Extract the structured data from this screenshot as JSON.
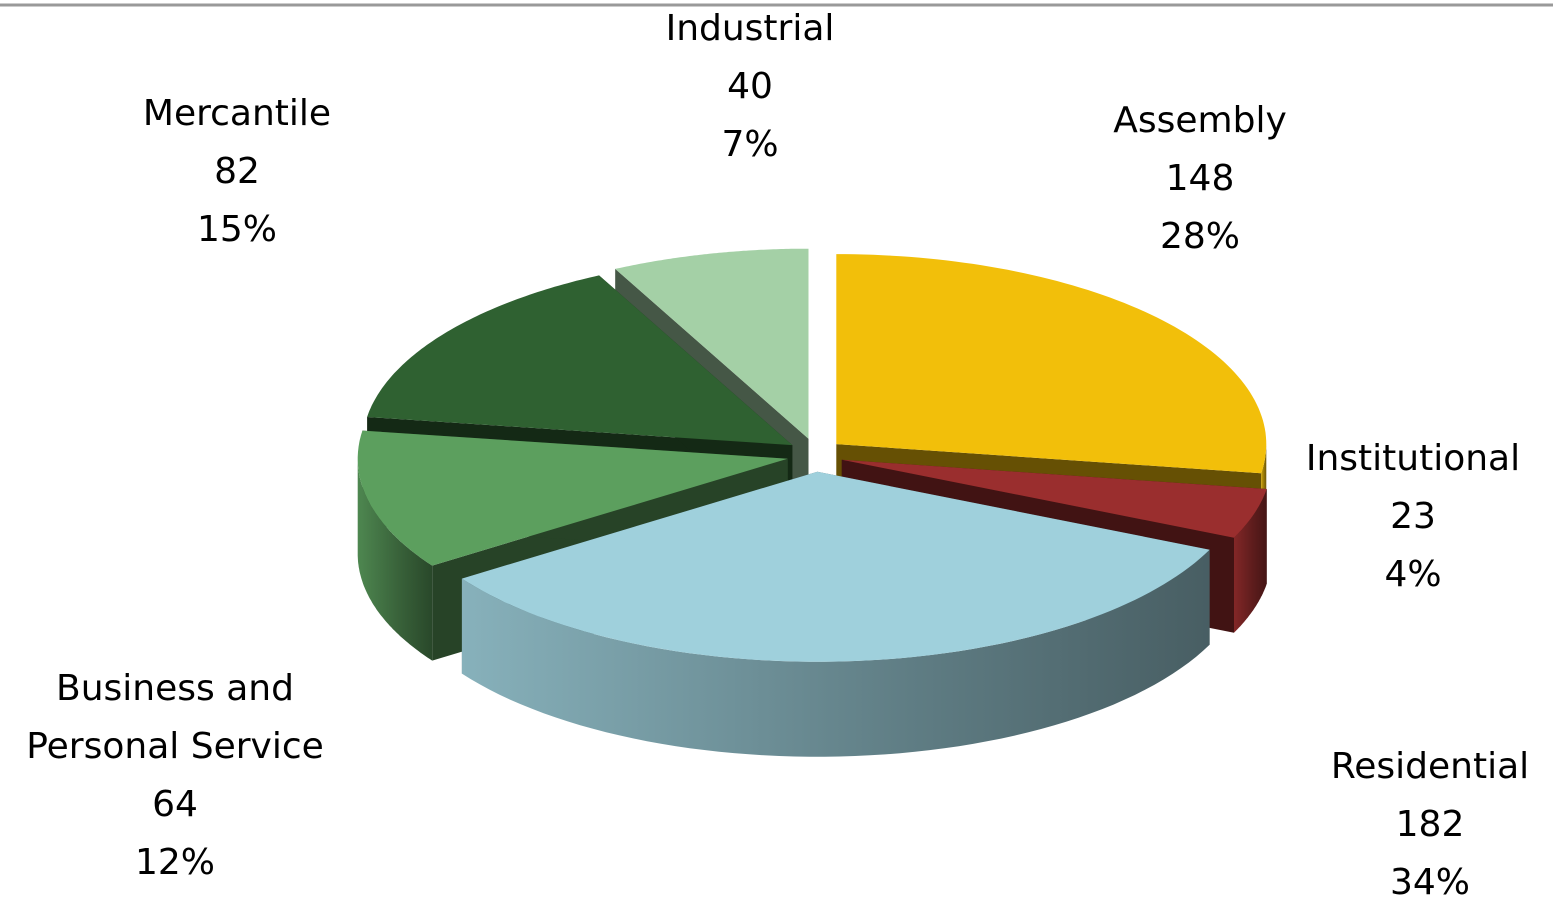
{
  "chart_data": {
    "type": "pie3d",
    "categories": [
      "Assembly",
      "Institutional",
      "Residential",
      "Business and Personal Service",
      "Mercantile",
      "Industrial"
    ],
    "values": [
      148,
      23,
      182,
      64,
      82,
      40
    ],
    "percent_labels": [
      "28%",
      "4%",
      "34%",
      "12%",
      "15%",
      "7%"
    ],
    "colors": [
      "#f2bf0a",
      "#9a2e2e",
      "#9fd0dc",
      "#5c9f5e",
      "#2f6131",
      "#a4d0a6"
    ]
  }
}
